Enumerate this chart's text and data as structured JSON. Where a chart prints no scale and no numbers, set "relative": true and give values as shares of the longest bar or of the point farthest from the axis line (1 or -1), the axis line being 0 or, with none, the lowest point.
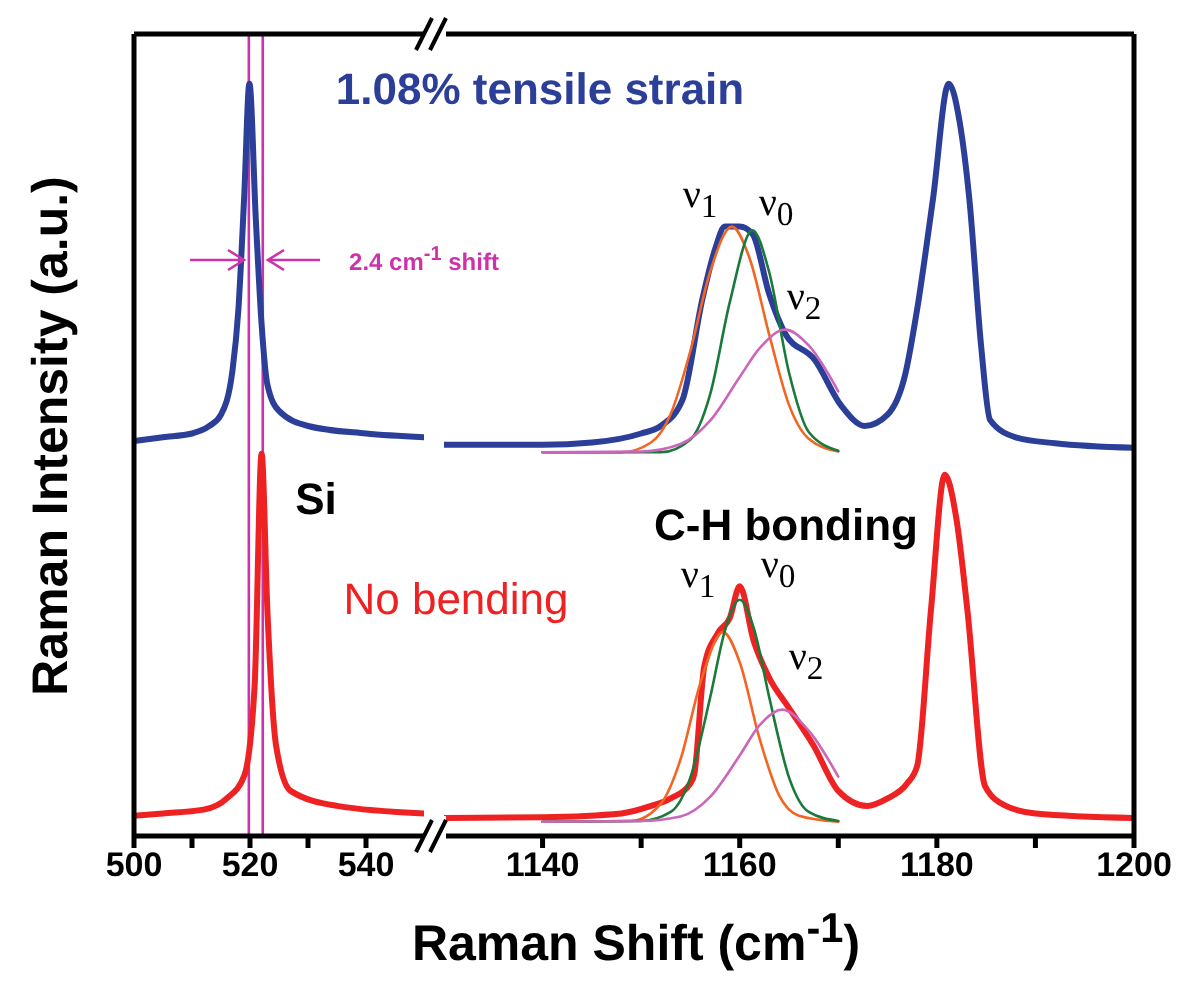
{
  "chart_data": [
    {
      "type": "line",
      "ylabel": "Raman Intensity (a.u.)",
      "relative": true,
      "xlim": [
        500,
        550
      ],
      "xticks": [
        500,
        {
          "value": 510,
          "label": null
        },
        520,
        {
          "value": 530,
          "label": null
        },
        540
      ],
      "ref_lines": [
        {
          "axis": "x",
          "value": 519.8,
          "color": "#cc33aa"
        },
        {
          "axis": "x",
          "value": 522.2,
          "color": "#cc33aa"
        }
      ],
      "annotations": [
        "Si",
        "2.4 cm$^{-1}$ shift"
      ],
      "series": [
        {
          "name": "1.08% tensile strain",
          "color": "#2b3f99",
          "x": [
            500,
            505,
            510,
            513,
            515,
            517,
            518,
            519,
            519.9,
            521,
            522,
            523,
            525,
            530,
            540,
            550
          ],
          "values": [
            0.525,
            0.53,
            0.535,
            0.545,
            0.56,
            0.62,
            0.7,
            0.85,
            1.0,
            0.82,
            0.68,
            0.6,
            0.565,
            0.545,
            0.535,
            0.53
          ]
        },
        {
          "name": "No bending",
          "color": "#ee2222",
          "x": [
            500,
            505,
            512,
            516,
            519,
            520.8,
            522,
            523,
            524.5,
            527,
            535,
            550
          ],
          "values": [
            0.027,
            0.03,
            0.035,
            0.05,
            0.08,
            0.2,
            0.508,
            0.3,
            0.12,
            0.06,
            0.04,
            0.03
          ]
        }
      ]
    },
    {
      "type": "line",
      "xlabel": "Raman Shift (cm$^{-1}$)",
      "relative": true,
      "xlim": [
        1130,
        1200
      ],
      "xticks": [
        1140,
        {
          "value": 1150,
          "label": null
        },
        1160,
        {
          "value": 1170,
          "label": null
        },
        1180,
        {
          "value": 1190,
          "label": null
        },
        1200
      ],
      "annotations": [
        "C-H bonding",
        "ν$_{1}$",
        "ν$_{0}$",
        "ν$_{2}$",
        "ν$_{1}$",
        "ν$_{0}$",
        "ν$_{2}$"
      ],
      "series": [
        {
          "color": "#2b3f99",
          "x": [
            1130,
            1140,
            1145,
            1150,
            1152,
            1154.2,
            1156.2,
            1157.5,
            1158.5,
            1160,
            1161.3,
            1163,
            1164.6,
            1167.6,
            1170.3,
            1172.7,
            1175,
            1176.8,
            1178,
            1179.6,
            1181.2,
            1182.3,
            1183.3,
            1184.5,
            1185.4,
            1188,
            1192,
            1200
          ],
          "values": [
            0.52,
            0.52,
            0.523,
            0.535,
            0.545,
            0.58,
            0.713,
            0.78,
            0.81,
            0.81,
            0.8,
            0.72,
            0.668,
            0.633,
            0.572,
            0.545,
            0.56,
            0.614,
            0.7,
            0.846,
            1.0,
            0.95,
            0.846,
            0.65,
            0.553,
            0.53,
            0.522,
            0.516
          ]
        },
        {
          "color": "#ee2222",
          "x": [
            1130,
            1140,
            1148,
            1151,
            1153,
            1155,
            1155.4,
            1156.4,
            1157.8,
            1159,
            1160,
            1161.4,
            1163,
            1164.9,
            1167.5,
            1170,
            1172.9,
            1175,
            1177,
            1178,
            1179.4,
            1180.8,
            1182,
            1183.1,
            1184.9,
            1187,
            1190,
            1200
          ],
          "values": [
            0.024,
            0.025,
            0.03,
            0.04,
            0.05,
            0.07,
            0.083,
            0.225,
            0.27,
            0.29,
            0.332,
            0.26,
            0.21,
            0.172,
            0.12,
            0.06,
            0.04,
            0.05,
            0.07,
            0.093,
            0.3,
            0.48,
            0.42,
            0.3,
            0.066,
            0.04,
            0.03,
            0.024
          ]
        },
        {
          "color": "#f26522",
          "x": [
            1140,
            1148,
            1151,
            1153,
            1155,
            1157,
            1159.2,
            1161,
            1163,
            1165,
            1167,
            1170
          ],
          "values": [
            0.51,
            0.51,
            0.523,
            0.561,
            0.645,
            0.75,
            0.81,
            0.768,
            0.666,
            0.573,
            0.528,
            0.511
          ]
        },
        {
          "color": "#1a7a3a",
          "x": [
            1140,
            1152,
            1155,
            1157,
            1159,
            1161.3,
            1163,
            1165,
            1167,
            1170
          ],
          "values": [
            0.51,
            0.51,
            0.527,
            0.587,
            0.71,
            0.805,
            0.749,
            0.616,
            0.537,
            0.512
          ]
        },
        {
          "color": "#cc66bb",
          "x": [
            1140,
            1150,
            1154,
            1157,
            1160,
            1162,
            1164.6,
            1167,
            1170
          ],
          "values": [
            0.51,
            0.511,
            0.521,
            0.552,
            0.61,
            0.648,
            0.673,
            0.652,
            0.591
          ]
        },
        {
          "color": "#f26522",
          "x": [
            1140,
            1149,
            1152,
            1154,
            1156,
            1158.3,
            1160,
            1162,
            1164,
            1166,
            1170
          ],
          "values": [
            0.019,
            0.02,
            0.043,
            0.102,
            0.203,
            0.271,
            0.231,
            0.13,
            0.054,
            0.027,
            0.019
          ]
        },
        {
          "color": "#1a7a3a",
          "x": [
            1140,
            1150,
            1153,
            1155,
            1157,
            1158.5,
            1160,
            1161.5,
            1163,
            1165,
            1167,
            1170
          ],
          "values": [
            0.019,
            0.02,
            0.032,
            0.078,
            0.184,
            0.273,
            0.314,
            0.273,
            0.184,
            0.078,
            0.032,
            0.02
          ]
        },
        {
          "color": "#cc66bb",
          "x": [
            1140,
            1150,
            1154,
            1157,
            1160,
            1162,
            1164.3,
            1167,
            1170
          ],
          "values": [
            0.019,
            0.02,
            0.026,
            0.052,
            0.107,
            0.147,
            0.168,
            0.14,
            0.079
          ]
        }
      ]
    }
  ]
}
